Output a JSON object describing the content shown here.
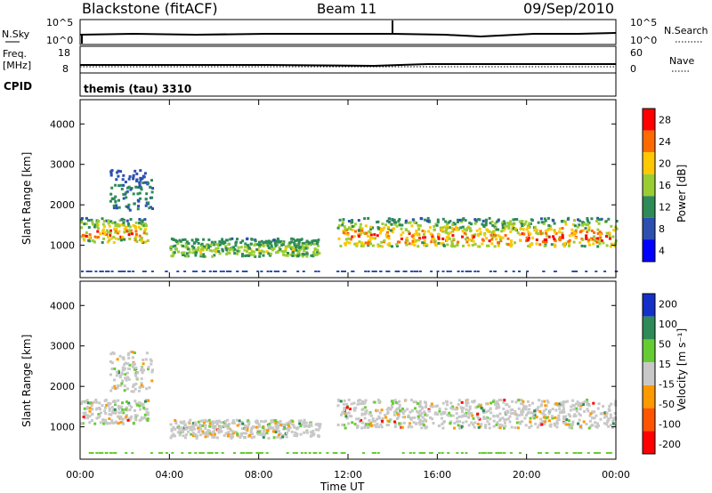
{
  "header": {
    "station": "Blackstone (fitACF)",
    "beam": "Beam 11",
    "date": "09/Sep/2010"
  },
  "panels": {
    "noise": {
      "left_label": "N.Sky",
      "right_label": "N.Search",
      "left_ticks": [
        "10^5",
        "10^0"
      ],
      "right_ticks": [
        "10^5",
        "10^0"
      ]
    },
    "freq": {
      "left_label_1": "Freq.",
      "left_label_2": "[MHz]",
      "right_label": "Nave",
      "left_ticks": [
        "18",
        "8"
      ],
      "right_ticks": [
        "60",
        "0"
      ]
    },
    "cpid": {
      "label": "CPID",
      "value": "themis (tau) 3310"
    }
  },
  "colorbars": {
    "power": {
      "title": "Power [dB]",
      "ticks": [
        "28",
        "24",
        "20",
        "16",
        "12",
        "8",
        "4"
      ],
      "colors": [
        "#ff0000",
        "#ff6a00",
        "#ffc800",
        "#9acd32",
        "#2e8b57",
        "#2c4fb0",
        "#0000ff"
      ]
    },
    "velocity": {
      "title": "Velocity [m s⁻¹]",
      "ticks": [
        "200",
        "100",
        "50",
        "15",
        "-15",
        "-50",
        "-100",
        "-200"
      ],
      "colors": [
        "#1530c8",
        "#2e8b57",
        "#66cc33",
        "#c8c8c8",
        "#ff9900",
        "#ff5500",
        "#ff0000"
      ]
    }
  },
  "chart_data": [
    {
      "type": "heatmap",
      "title": "",
      "quantity": "Power [dB]",
      "ylabel": "Slant Range [km]",
      "xlabel": "",
      "ylim": [
        200,
        4600
      ],
      "y_ticks": [
        "1000",
        "2000",
        "3000",
        "4000"
      ],
      "x_ticks": [
        "00:00",
        "04:00",
        "08:00",
        "12:00",
        "16:00",
        "20:00",
        "00:00"
      ],
      "bands": [
        {
          "t": [
            0.0,
            3.0
          ],
          "r": [
            1100,
            1700
          ],
          "power": [
            4,
            30
          ]
        },
        {
          "t": [
            1.3,
            3.2
          ],
          "r": [
            1900,
            2900
          ],
          "power": [
            4,
            16
          ]
        },
        {
          "t": [
            4.0,
            10.7
          ],
          "r": [
            750,
            1200
          ],
          "power": [
            8,
            20
          ]
        },
        {
          "t": [
            11.5,
            24.0
          ],
          "r": [
            1000,
            1700
          ],
          "power": [
            4,
            30
          ]
        }
      ]
    },
    {
      "type": "heatmap",
      "title": "",
      "quantity": "Velocity [m s⁻¹]",
      "ylabel": "Slant Range [km]",
      "xlabel": "Time UT",
      "ylim": [
        200,
        4600
      ],
      "y_ticks": [
        "1000",
        "2000",
        "3000",
        "4000"
      ],
      "x_ticks": [
        "00:00",
        "04:00",
        "08:00",
        "12:00",
        "16:00",
        "20:00",
        "00:00"
      ],
      "bands": [
        {
          "t": [
            0.0,
            3.0
          ],
          "r": [
            1100,
            1700
          ],
          "velocity": [
            -15,
            15
          ]
        },
        {
          "t": [
            1.3,
            3.2
          ],
          "r": [
            1900,
            2900
          ],
          "velocity": [
            -50,
            50
          ]
        },
        {
          "t": [
            4.0,
            10.7
          ],
          "r": [
            750,
            1200
          ],
          "velocity": [
            -50,
            50
          ]
        },
        {
          "t": [
            11.5,
            24.0
          ],
          "r": [
            1000,
            1700
          ],
          "velocity": [
            -15,
            15
          ]
        }
      ]
    }
  ]
}
